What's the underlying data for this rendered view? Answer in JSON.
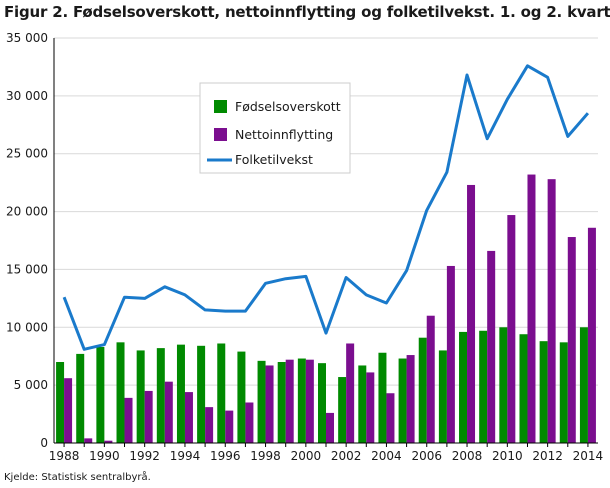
{
  "title": "Figur 2. Fødselsoverskott, nettoinnflytting og folketilvekst. 1. og 2. kvartal",
  "source": "Kjelde: Statistisk sentralbyrå.",
  "colors": {
    "births": "#008a00",
    "migration": "#7b0e8f",
    "growth": "#1a7acb",
    "grid": "#d9d9d9",
    "axis": "#000000"
  },
  "chart_data": {
    "type": "bar",
    "years": [
      1988,
      1989,
      1990,
      1991,
      1992,
      1993,
      1994,
      1995,
      1996,
      1997,
      1998,
      1999,
      2000,
      2001,
      2002,
      2003,
      2004,
      2005,
      2006,
      2007,
      2008,
      2009,
      2010,
      2011,
      2012,
      2013,
      2014
    ],
    "x_tick_labels": [
      "1988",
      "1990",
      "1992",
      "1994",
      "1996",
      "1998",
      "2000",
      "2002",
      "2004",
      "2006",
      "2008",
      "2010",
      "2012",
      "2014"
    ],
    "y_tick_labels": [
      "0",
      "5 000",
      "10 000",
      "15 000",
      "20 000",
      "25 000",
      "30 000",
      "35 000"
    ],
    "ylim": [
      0,
      35000
    ],
    "y_step": 5000,
    "grid": true,
    "legend_position": "top-left inside plot",
    "series": [
      {
        "name": "Fødselsoverskott",
        "type": "bar",
        "color": "#008a00",
        "values": [
          7000,
          7700,
          8300,
          8700,
          8000,
          8200,
          8500,
          8400,
          8600,
          7900,
          7100,
          7000,
          7300,
          6900,
          5700,
          6700,
          7800,
          7300,
          9100,
          8000,
          9600,
          9700,
          10000,
          9400,
          8800,
          8700,
          10000
        ]
      },
      {
        "name": "Nettoinnflytting",
        "type": "bar",
        "color": "#7b0e8f",
        "values": [
          5600,
          400,
          200,
          3900,
          4500,
          5300,
          4400,
          3100,
          2800,
          3500,
          6700,
          7200,
          7200,
          2600,
          8600,
          6100,
          4300,
          7600,
          11000,
          15300,
          22300,
          16600,
          19700,
          23200,
          22800,
          17800,
          18600
        ]
      },
      {
        "name": "Folketilvekst",
        "type": "line",
        "color": "#1a7acb",
        "values": [
          12600,
          8100,
          8500,
          12600,
          12500,
          13500,
          12800,
          11500,
          11400,
          11400,
          13800,
          14200,
          14400,
          9500,
          14300,
          12800,
          12100,
          14900,
          20100,
          23400,
          31800,
          26300,
          29700,
          32600,
          31600,
          26500,
          28500
        ]
      }
    ]
  }
}
